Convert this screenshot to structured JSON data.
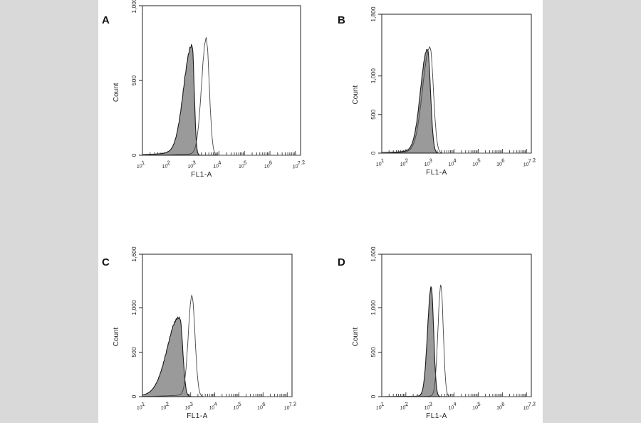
{
  "figure": {
    "background_color": "#d9d9d9",
    "panel_color": "#ffffff",
    "filled_color": "#9a9a9a",
    "outline_color": "#1a1a1a"
  },
  "chart_data": [
    {
      "type": "area",
      "panel_label": "A",
      "xlabel": "FL1-A",
      "ylabel": "Count",
      "x_scale": "log10",
      "xlim": [
        1,
        7.2
      ],
      "ylim": [
        0,
        1000
      ],
      "x_ticks": [
        "10^1",
        "10^2",
        "10^3",
        "10^4",
        "10^5",
        "10^6",
        "10^7.2"
      ],
      "y_ticks": [
        "0",
        "500",
        "1,000"
      ],
      "series": [
        {
          "style": "filled",
          "peak_log10": 2.95,
          "peak_count": 730,
          "sigma_left": 0.32,
          "sigma_right": 0.08,
          "left_tail": 40
        },
        {
          "style": "outline",
          "peak_log10": 3.5,
          "peak_count": 780,
          "sigma_left": 0.18,
          "sigma_right": 0.12,
          "left_tail": 15
        }
      ]
    },
    {
      "type": "area",
      "panel_label": "B",
      "xlabel": "FL1-A",
      "ylabel": "Count",
      "x_scale": "log10",
      "xlim": [
        1,
        7.2
      ],
      "ylim": [
        0,
        1800
      ],
      "x_ticks": [
        "10^1",
        "10^2",
        "10^3",
        "10^4",
        "10^5",
        "10^6",
        "10^7.2"
      ],
      "y_ticks": [
        "0",
        "500",
        "1,000",
        "1,800"
      ],
      "series": [
        {
          "style": "filled",
          "peak_log10": 2.9,
          "peak_count": 1340,
          "sigma_left": 0.28,
          "sigma_right": 0.12,
          "left_tail": 60
        },
        {
          "style": "outline",
          "peak_log10": 3.0,
          "peak_count": 1370,
          "sigma_left": 0.3,
          "sigma_right": 0.14,
          "left_tail": 40
        }
      ]
    },
    {
      "type": "area",
      "panel_label": "C",
      "xlabel": "FL1-A",
      "ylabel": "Count",
      "x_scale": "log10",
      "xlim": [
        1,
        7.2
      ],
      "ylim": [
        0,
        1600
      ],
      "x_ticks": [
        "10^1",
        "10^2",
        "10^3",
        "10^4",
        "10^5",
        "10^6",
        "10^7.2"
      ],
      "y_ticks": [
        "0",
        "500",
        "1,000",
        "1,600"
      ],
      "series": [
        {
          "style": "filled",
          "peak_log10": 2.55,
          "peak_count": 880,
          "sigma_left": 0.5,
          "sigma_right": 0.12,
          "left_tail": 60
        },
        {
          "style": "outline",
          "peak_log10": 3.05,
          "peak_count": 1130,
          "sigma_left": 0.15,
          "sigma_right": 0.13,
          "left_tail": 30
        }
      ]
    },
    {
      "type": "area",
      "panel_label": "D",
      "xlabel": "FL1-A",
      "ylabel": "Count",
      "x_scale": "log10",
      "xlim": [
        1,
        7.2
      ],
      "ylim": [
        0,
        1600
      ],
      "x_ticks": [
        "10^1",
        "10^2",
        "10^3",
        "10^4",
        "10^5",
        "10^6",
        "10^7.2"
      ],
      "y_ticks": [
        "0",
        "500",
        "1,000",
        "1,600"
      ],
      "series": [
        {
          "style": "filled",
          "peak_log10": 3.05,
          "peak_count": 1230,
          "sigma_left": 0.15,
          "sigma_right": 0.1,
          "left_tail": 10
        },
        {
          "style": "outline",
          "peak_log10": 3.45,
          "peak_count": 1250,
          "sigma_left": 0.12,
          "sigma_right": 0.1,
          "left_tail": 10
        }
      ]
    }
  ]
}
